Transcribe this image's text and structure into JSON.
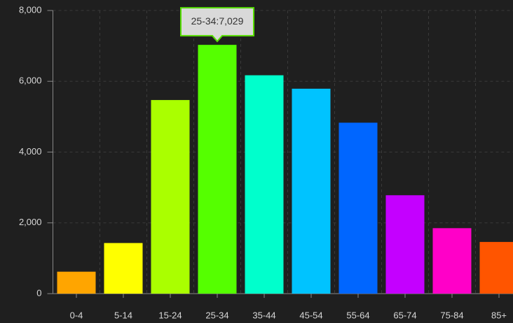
{
  "chart_data": {
    "type": "bar",
    "categories": [
      "0-4",
      "5-14",
      "15-24",
      "25-34",
      "35-44",
      "45-54",
      "55-64",
      "65-74",
      "75-84",
      "85+"
    ],
    "values": [
      620,
      1430,
      5470,
      7029,
      6170,
      5790,
      4830,
      2780,
      1850,
      1460
    ],
    "colors": [
      "#ffa500",
      "#ffff00",
      "#aaff00",
      "#55ff00",
      "#00ffcc",
      "#00c3ff",
      "#0066ff",
      "#c400ff",
      "#ff00c8",
      "#ff5500"
    ],
    "ylim": [
      0,
      8000
    ],
    "yticks": [
      0,
      {
        "value": 2000,
        "label": "2,000"
      },
      {
        "value": 4000,
        "label": "4,000"
      },
      {
        "value": 6000,
        "label": "6,000"
      },
      {
        "value": 8000,
        "label": "8,000"
      }
    ],
    "grid": true,
    "annotations": [
      {
        "text": "25-34:7,029",
        "category": "25-34"
      }
    ]
  }
}
